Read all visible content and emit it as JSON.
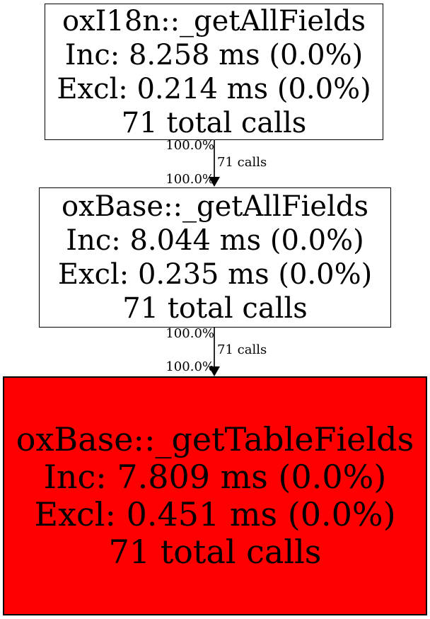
{
  "graph": {
    "background_color": "#ffffff",
    "node_border_color": "#000000",
    "edge_color": "#2a2a2a",
    "hot_node_color": "#ff0000",
    "nodes": [
      {
        "title": "oxI18n::_getAllFields",
        "inc": "Inc: 8.258 ms (0.0%)",
        "excl": "Excl: 0.214 ms (0.0%)",
        "calls": "71 total calls",
        "fill": "#ffffff"
      },
      {
        "title": "oxBase::_getAllFields",
        "inc": "Inc: 8.044 ms (0.0%)",
        "excl": "Excl: 0.235 ms (0.0%)",
        "calls": "71 total calls",
        "fill": "#ffffff"
      },
      {
        "title": "oxBase::_getTableFields",
        "inc": "Inc: 7.809 ms (0.0%)",
        "excl": "Excl: 0.451 ms (0.0%)",
        "calls": "71 total calls",
        "fill": "#ff0000"
      }
    ],
    "edges": [
      {
        "pct_in": "100.0%",
        "calls_label": "71 calls",
        "pct_out": "100.0%"
      },
      {
        "pct_in": "100.0%",
        "calls_label": "71 calls",
        "pct_out": "100.0%"
      }
    ]
  }
}
